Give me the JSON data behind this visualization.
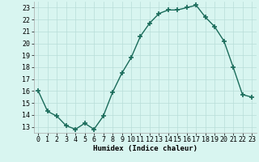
{
  "x": [
    0,
    1,
    2,
    3,
    4,
    5,
    6,
    7,
    8,
    9,
    10,
    11,
    12,
    13,
    14,
    15,
    16,
    17,
    18,
    19,
    20,
    21,
    22,
    23
  ],
  "y": [
    16,
    14.3,
    13.9,
    13.1,
    12.8,
    13.3,
    12.8,
    13.9,
    15.9,
    17.5,
    18.8,
    20.6,
    21.7,
    22.5,
    22.8,
    22.8,
    23.0,
    23.2,
    22.2,
    21.4,
    20.2,
    18.0,
    15.7,
    15.5
  ],
  "line_color": "#1a6b5a",
  "marker": "+",
  "markersize": 4,
  "markeredgewidth": 1.2,
  "linewidth": 1.0,
  "background_color": "#d8f5f0",
  "grid_color": "#b8ddd8",
  "xlabel": "Humidex (Indice chaleur)",
  "xlim": [
    -0.5,
    23.5
  ],
  "ylim": [
    12.5,
    23.5
  ],
  "yticks": [
    13,
    14,
    15,
    16,
    17,
    18,
    19,
    20,
    21,
    22,
    23
  ],
  "xticks": [
    0,
    1,
    2,
    3,
    4,
    5,
    6,
    7,
    8,
    9,
    10,
    11,
    12,
    13,
    14,
    15,
    16,
    17,
    18,
    19,
    20,
    21,
    22,
    23
  ],
  "xlabel_fontsize": 6.5,
  "tick_fontsize": 6.0
}
